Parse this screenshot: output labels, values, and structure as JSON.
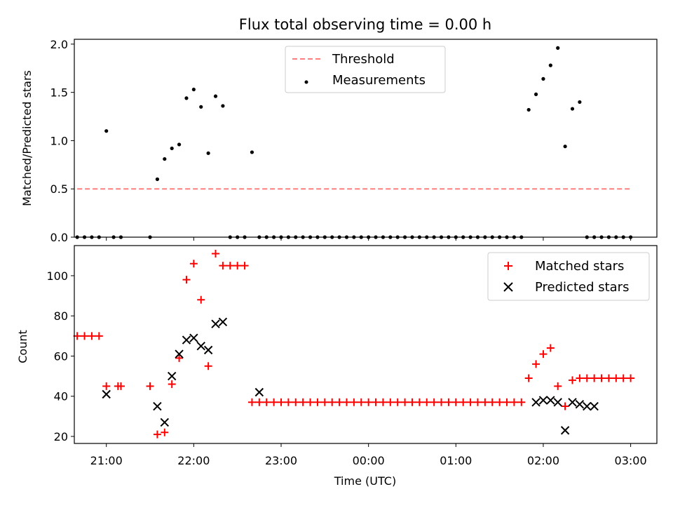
{
  "chart_data": [
    {
      "type": "scatter",
      "title": "Flux total observing time = 0.00 h",
      "ylabel": "Matched/Predicted stars",
      "xlabel": "",
      "xlim": [
        "20:38",
        "03:18"
      ],
      "ylim": [
        0,
        2.05
      ],
      "yticks": [
        "0.0",
        "0.5",
        "1.0",
        "1.5",
        "2.0"
      ],
      "yticks_values": [
        0,
        0.5,
        1.0,
        1.5,
        2.0
      ],
      "grid": false,
      "legend": "top-center",
      "series": [
        {
          "name": "Threshold",
          "kind": "dashed-line",
          "color": "#ff7f7f",
          "x": [
            "20:40",
            "03:00"
          ],
          "y": [
            0.5,
            0.5
          ]
        },
        {
          "name": "Measurements",
          "kind": "points",
          "color": "#000000",
          "x": [
            "20:40",
            "20:45",
            "20:50",
            "20:55",
            "21:00",
            "21:05",
            "21:10",
            "21:30",
            "21:35",
            "21:40",
            "21:45",
            "21:50",
            "21:55",
            "22:00",
            "22:05",
            "22:10",
            "22:15",
            "22:20",
            "22:25",
            "22:30",
            "22:35",
            "22:40",
            "22:45",
            "22:50",
            "22:55",
            "23:00",
            "23:05",
            "23:10",
            "23:15",
            "23:20",
            "23:25",
            "23:30",
            "23:35",
            "23:40",
            "23:45",
            "23:50",
            "23:55",
            "00:00",
            "00:05",
            "00:10",
            "00:15",
            "00:20",
            "00:25",
            "00:30",
            "00:35",
            "00:40",
            "00:45",
            "00:50",
            "00:55",
            "01:00",
            "01:05",
            "01:10",
            "01:15",
            "01:20",
            "01:25",
            "01:30",
            "01:35",
            "01:40",
            "01:45",
            "01:50",
            "01:55",
            "02:00",
            "02:05",
            "02:10",
            "02:15",
            "02:20",
            "02:25",
            "02:30",
            "02:35",
            "02:40",
            "02:45",
            "02:50",
            "02:55",
            "03:00"
          ],
          "y": [
            0,
            0,
            0,
            0,
            1.1,
            0,
            0,
            0,
            0.6,
            0.81,
            0.92,
            0.96,
            1.44,
            1.53,
            1.35,
            0.87,
            1.46,
            1.36,
            0,
            0,
            0,
            0.88,
            0,
            0,
            0,
            0,
            0,
            0,
            0,
            0,
            0,
            0,
            0,
            0,
            0,
            0,
            0,
            0,
            0,
            0,
            0,
            0,
            0,
            0,
            0,
            0,
            0,
            0,
            0,
            0,
            0,
            0,
            0,
            0,
            0,
            0,
            0,
            0,
            0,
            1.32,
            1.48,
            1.64,
            1.78,
            1.96,
            0.94,
            1.33,
            1.4,
            0,
            0,
            0,
            0,
            0,
            0,
            0
          ]
        }
      ]
    },
    {
      "type": "scatter",
      "title": "",
      "ylabel": "Count",
      "xlabel": "Time (UTC)",
      "xlim": [
        "20:38",
        "03:18"
      ],
      "ylim": [
        16.5,
        115
      ],
      "yticks": [
        "20",
        "40",
        "60",
        "80",
        "100"
      ],
      "yticks_values": [
        20,
        40,
        60,
        80,
        100
      ],
      "xticks": [
        "21:00",
        "22:00",
        "23:00",
        "00:00",
        "01:00",
        "02:00",
        "03:00"
      ],
      "grid": false,
      "legend": "top-right",
      "series": [
        {
          "name": "Matched stars",
          "marker": "plus",
          "color": "#ff0000",
          "x": [
            "20:40",
            "20:45",
            "20:50",
            "20:55",
            "21:00",
            "21:08",
            "21:10",
            "21:30",
            "21:35",
            "21:40",
            "21:45",
            "21:50",
            "21:55",
            "22:00",
            "22:05",
            "22:10",
            "22:15",
            "22:20",
            "22:25",
            "22:30",
            "22:35",
            "22:40",
            "22:45",
            "22:50",
            "22:55",
            "23:00",
            "23:05",
            "23:10",
            "23:15",
            "23:20",
            "23:25",
            "23:30",
            "23:35",
            "23:40",
            "23:45",
            "23:50",
            "23:55",
            "00:00",
            "00:05",
            "00:10",
            "00:15",
            "00:20",
            "00:25",
            "00:30",
            "00:35",
            "00:40",
            "00:45",
            "00:50",
            "00:55",
            "01:00",
            "01:05",
            "01:10",
            "01:15",
            "01:20",
            "01:25",
            "01:30",
            "01:35",
            "01:40",
            "01:45",
            "01:50",
            "01:55",
            "02:00",
            "02:05",
            "02:10",
            "02:15",
            "02:20",
            "02:25",
            "02:30",
            "02:35",
            "02:40",
            "02:45",
            "02:50",
            "02:55",
            "03:00"
          ],
          "y": [
            70,
            70,
            70,
            70,
            45,
            45,
            45,
            45,
            21,
            22,
            46,
            59,
            98,
            106,
            88,
            55,
            111,
            105,
            105,
            105,
            105,
            37,
            37,
            37,
            37,
            37,
            37,
            37,
            37,
            37,
            37,
            37,
            37,
            37,
            37,
            37,
            37,
            37,
            37,
            37,
            37,
            37,
            37,
            37,
            37,
            37,
            37,
            37,
            37,
            37,
            37,
            37,
            37,
            37,
            37,
            37,
            37,
            37,
            37,
            49,
            56,
            61,
            64,
            45,
            35,
            48,
            49,
            49,
            49,
            49,
            49,
            49,
            49,
            49
          ]
        },
        {
          "name": "Predicted stars",
          "marker": "x",
          "color": "#000000",
          "x": [
            "21:00",
            "21:35",
            "21:40",
            "21:45",
            "21:50",
            "21:55",
            "22:00",
            "22:05",
            "22:10",
            "22:15",
            "22:20",
            "22:45",
            "01:55",
            "02:00",
            "02:05",
            "02:10",
            "02:15",
            "02:20",
            "02:25",
            "02:30",
            "02:35"
          ],
          "y": [
            41,
            35,
            27,
            50,
            61,
            68,
            69,
            65,
            63,
            76,
            77,
            42,
            37,
            38,
            38,
            37,
            23,
            37,
            36,
            35,
            35
          ]
        }
      ]
    }
  ]
}
